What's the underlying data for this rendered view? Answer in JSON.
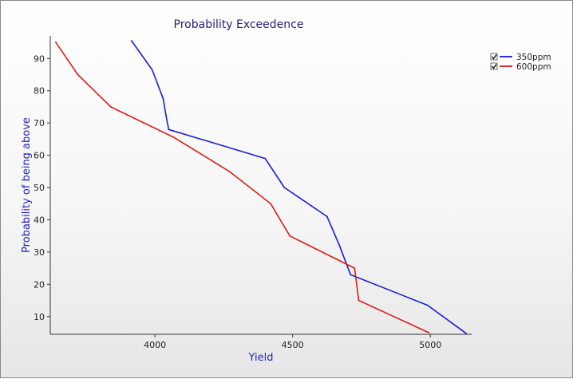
{
  "chart_data": {
    "type": "line",
    "title": "Probability Exceedence",
    "xlabel": "Yield",
    "ylabel": "Probability of being above",
    "xlim": [
      3620,
      5150
    ],
    "ylim": [
      4.5,
      97
    ],
    "x_ticks": [
      4000,
      4500,
      5000
    ],
    "y_ticks": [
      10,
      20,
      30,
      40,
      50,
      60,
      70,
      80,
      90
    ],
    "grid": false,
    "legend_position": "top-right",
    "series": [
      {
        "name": "350ppm",
        "color": "#1c1cd6",
        "checked": true,
        "points": [
          [
            3915,
            95.5
          ],
          [
            3990,
            86.5
          ],
          [
            4030,
            77.5
          ],
          [
            4040,
            72.5
          ],
          [
            4050,
            68
          ],
          [
            4400,
            59
          ],
          [
            4470,
            50
          ],
          [
            4625,
            41
          ],
          [
            4670,
            32
          ],
          [
            4710,
            23
          ],
          [
            4990,
            13.5
          ],
          [
            5130,
            4.8
          ]
        ]
      },
      {
        "name": "600ppm",
        "color": "#dd1c1c",
        "checked": true,
        "points": [
          [
            3640,
            95
          ],
          [
            3720,
            85
          ],
          [
            3840,
            75
          ],
          [
            4070,
            65.5
          ],
          [
            4270,
            55
          ],
          [
            4420,
            45
          ],
          [
            4490,
            35
          ],
          [
            4725,
            25
          ],
          [
            4740,
            15
          ],
          [
            4995,
            5
          ]
        ]
      }
    ]
  }
}
